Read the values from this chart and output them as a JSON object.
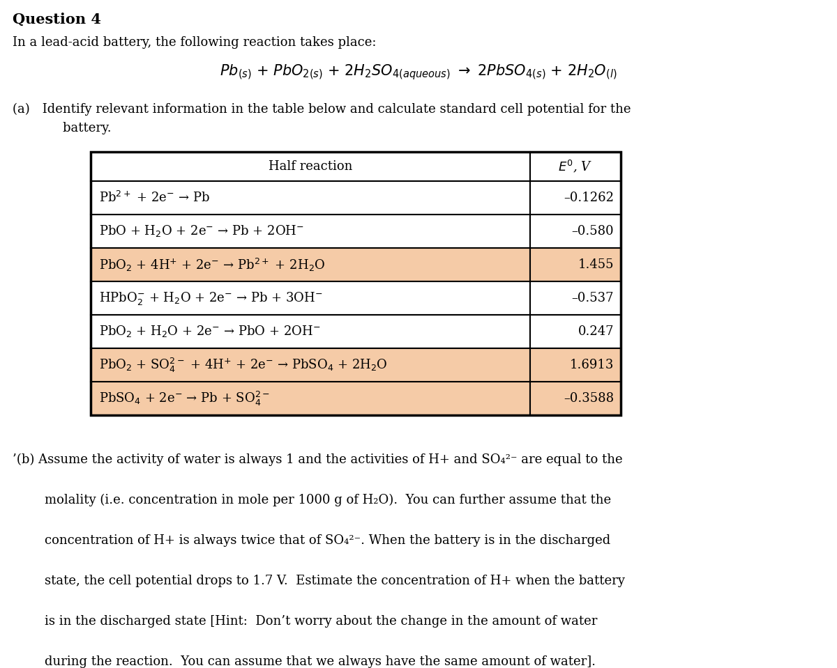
{
  "title": "Question 4",
  "intro_text": "In a lead-acid battery, the following reaction takes place:",
  "reaction_italic": "Pb",
  "part_a_line1": "(a) Identify relevant information in the table below and calculate standard cell potential for the",
  "part_a_line2": "    battery.",
  "table_header_col1": "Half reaction",
  "table_header_col2": "$E^{0}$, V",
  "table_rows": [
    [
      "Pb$^{2+}$ + 2e$^{-}$ → Pb",
      "–0.1262"
    ],
    [
      "PbO + H$_{2}$O + 2e$^{-}$ → Pb + 2OH$^{-}$",
      "–0.580"
    ],
    [
      "PbO$_{2}$ + 4H$^{+}$ + 2e$^{-}$ → Pb$^{2+}$ + 2H$_{2}$O",
      "1.455"
    ],
    [
      "HPbO$_{2}^{-}$ + H$_{2}$O + 2e$^{-}$ → Pb + 3OH$^{-}$",
      "–0.537"
    ],
    [
      "PbO$_{2}$ + H$_{2}$O + 2e$^{-}$ → PbO + 2OH$^{-}$",
      "0.247"
    ],
    [
      "PbO$_{2}$ + SO$_{4}^{2-}$ + 4H$^{+}$ + 2e$^{-}$ → PbSO$_{4}$ + 2H$_{2}$O",
      "1.6913"
    ],
    [
      "PbSO$_{4}$ + 2e$^{-}$ → Pb + SO$_{4}^{2-}$",
      "–0.3588"
    ]
  ],
  "highlighted_rows": [
    2,
    5,
    6
  ],
  "highlight_color": "#F5CBA7",
  "white_color": "#FFFFFF",
  "part_b_lines": [
    "’(b) Assume the activity of water is always 1 and the activities of H+ and SO₄²⁻ are equal to the",
    "        molality (i.e. concentration in mole per 1000 g of H₂O).  You can further assume that the",
    "        concentration of H+ is always twice that of SO₄²⁻. When the battery is in the discharged",
    "        state, the cell potential drops to 1.7 V.  Estimate the concentration of H+ when the battery",
    "        is in the discharged state [Hint:  Don’t worry about the change in the amount of water",
    "        during the reaction.  You can assume that we always have the same amount of water]."
  ],
  "background_color": "#ffffff",
  "text_color": "#000000",
  "fs_title": 15,
  "fs_body": 13,
  "fs_table": 13
}
